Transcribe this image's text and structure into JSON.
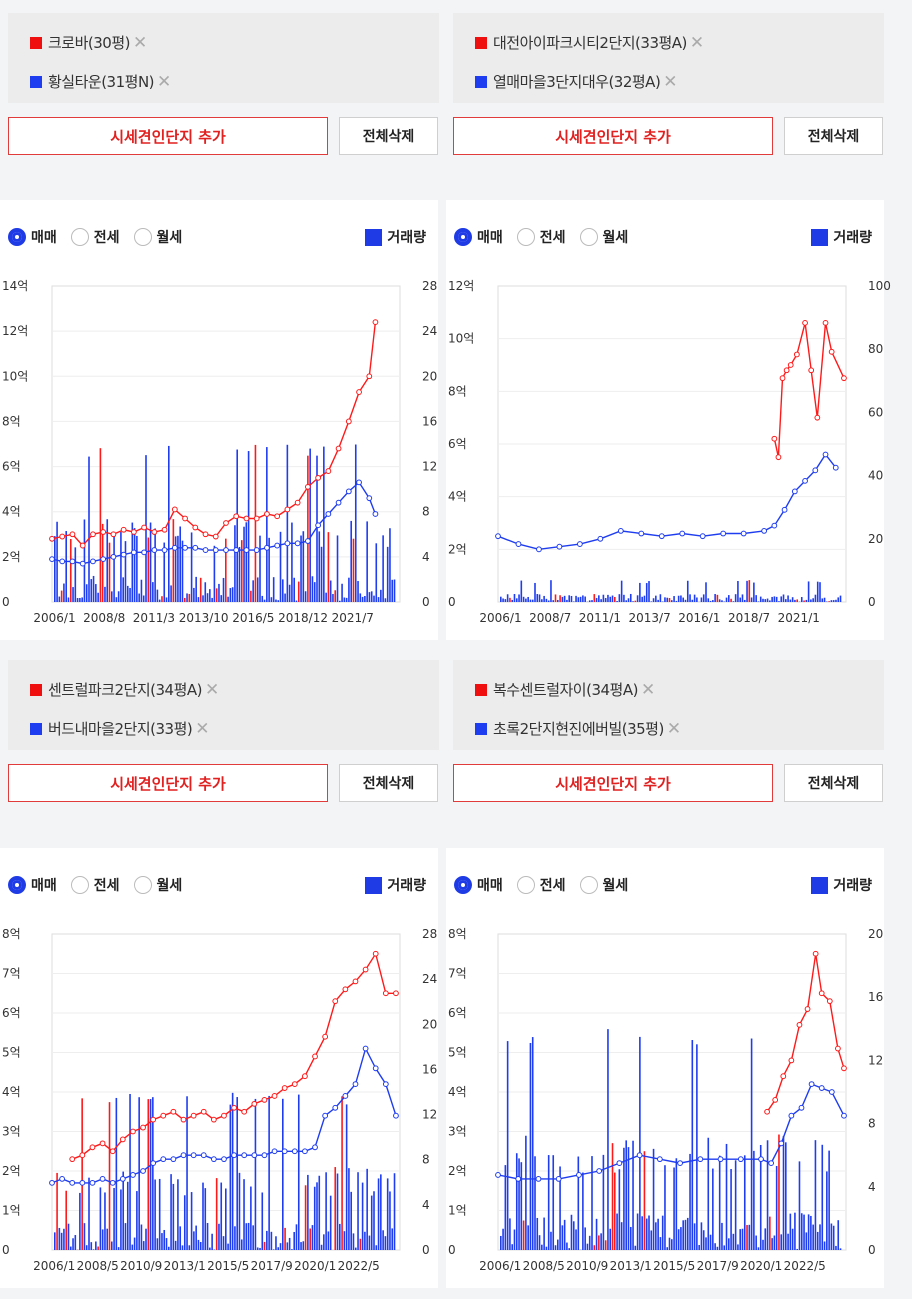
{
  "ui": {
    "add_label": "시세견인단지 추가",
    "delete_label": "전체삭제",
    "close_glyph": "✕",
    "options": [
      "매매",
      "전세",
      "월세"
    ],
    "volume_label": "거래량",
    "colors": {
      "primary": "#ff1a1a",
      "secondary": "#1f3df0"
    }
  },
  "panels": [
    {
      "legend": [
        {
          "label": "크로바(30평)",
          "color": "#f00f0f"
        },
        {
          "label": "황실타운(31평N)",
          "color": "#1f3df0"
        }
      ],
      "chart": {
        "y_left_ticks": [
          "14억",
          "12억",
          "10억",
          "8억",
          "6억",
          "4억",
          "2억",
          "0"
        ],
        "y_right_ticks": [
          "28",
          "24",
          "20",
          "16",
          "12",
          "8",
          "4",
          "0"
        ],
        "x_ticks": [
          "2006/1",
          "2008/8",
          "2011/3",
          "2013/10",
          "2016/5",
          "2018/12",
          "2021/7"
        ]
      }
    },
    {
      "legend": [
        {
          "label": "대전아이파크시티2단지(33평A)",
          "color": "#f00f0f"
        },
        {
          "label": "열매마을3단지대우(32평A)",
          "color": "#1f3df0"
        }
      ],
      "chart": {
        "y_left_ticks": [
          "12억",
          "10억",
          "8억",
          "6억",
          "4억",
          "2억",
          "0"
        ],
        "y_right_ticks": [
          "100",
          "80",
          "60",
          "40",
          "20",
          "0"
        ],
        "x_ticks": [
          "2006/1",
          "2008/7",
          "2011/1",
          "2013/7",
          "2016/1",
          "2018/7",
          "2021/1"
        ]
      }
    },
    {
      "legend": [
        {
          "label": "센트럴파크2단지(34평A)",
          "color": "#f00f0f"
        },
        {
          "label": "버드내마을2단지(33평)",
          "color": "#1f3df0"
        }
      ],
      "chart": {
        "y_left_ticks": [
          "8억",
          "7억",
          "6억",
          "5억",
          "4억",
          "3억",
          "2억",
          "1억",
          "0"
        ],
        "y_right_ticks": [
          "28",
          "24",
          "20",
          "16",
          "12",
          "8",
          "4",
          "0"
        ],
        "x_ticks": [
          "2006/1",
          "2008/5",
          "2010/9",
          "2013/1",
          "2015/5",
          "2017/9",
          "2020/1",
          "2022/5"
        ]
      }
    },
    {
      "legend": [
        {
          "label": "복수센트럴자이(34평A)",
          "color": "#f00f0f"
        },
        {
          "label": "초록2단지현진에버빌(35평)",
          "color": "#1f3df0"
        }
      ],
      "chart": {
        "y_left_ticks": [
          "8억",
          "7억",
          "6억",
          "5억",
          "4억",
          "3억",
          "2억",
          "1억",
          "0"
        ],
        "y_right_ticks": [
          "20",
          "16",
          "12",
          "8",
          "4",
          "0"
        ],
        "x_ticks": [
          "2006/1",
          "2008/5",
          "2010/9",
          "2013/1",
          "2015/5",
          "2017/9",
          "2020/1",
          "2022/5"
        ]
      }
    }
  ],
  "chart_data": [
    {
      "type": "line",
      "title": "",
      "ylim": [
        0,
        14
      ],
      "y2lim": [
        0,
        28
      ],
      "x_range": [
        2006.0,
        2023.0
      ],
      "series": [
        {
          "name": "크로바(30평)",
          "color": "#ff1a1a",
          "x": [
            2006.0,
            2006.5,
            2007.0,
            2007.5,
            2008.0,
            2008.5,
            2009.0,
            2009.5,
            2010.0,
            2010.5,
            2011.0,
            2011.5,
            2012.0,
            2012.5,
            2013.0,
            2013.5,
            2014.0,
            2014.5,
            2015.0,
            2015.5,
            2016.0,
            2016.5,
            2017.0,
            2017.5,
            2018.0,
            2018.5,
            2019.0,
            2019.5,
            2020.0,
            2020.5,
            2021.0,
            2021.5,
            2021.8
          ],
          "y": [
            2.8,
            2.9,
            3.0,
            2.5,
            3.0,
            3.1,
            3.0,
            3.2,
            3.1,
            3.3,
            3.1,
            3.2,
            4.1,
            3.7,
            3.3,
            3.0,
            2.9,
            3.5,
            3.8,
            3.7,
            3.7,
            3.9,
            3.8,
            4.1,
            4.4,
            5.1,
            5.5,
            5.8,
            6.8,
            8.0,
            9.3,
            10.0,
            12.4
          ]
        },
        {
          "name": "황실타운(31평N)",
          "color": "#1f3df0",
          "x": [
            2006.0,
            2006.5,
            2007.0,
            2007.5,
            2008.0,
            2008.5,
            2009.0,
            2009.5,
            2010.0,
            2010.5,
            2011.0,
            2011.5,
            2012.0,
            2012.5,
            2013.0,
            2013.5,
            2014.0,
            2014.5,
            2015.0,
            2015.5,
            2016.0,
            2016.5,
            2017.0,
            2017.5,
            2018.0,
            2018.5,
            2019.0,
            2019.5,
            2020.0,
            2020.5,
            2021.0,
            2021.5,
            2021.8
          ],
          "y": [
            1.9,
            1.8,
            1.8,
            1.7,
            1.8,
            1.9,
            2.0,
            2.1,
            2.2,
            2.2,
            2.3,
            2.3,
            2.4,
            2.4,
            2.4,
            2.3,
            2.3,
            2.3,
            2.3,
            2.3,
            2.3,
            2.4,
            2.5,
            2.6,
            2.6,
            2.7,
            3.4,
            3.9,
            4.4,
            4.9,
            5.3,
            4.6,
            3.9
          ]
        }
      ]
    },
    {
      "type": "line",
      "title": "",
      "ylim": [
        0,
        12
      ],
      "y2lim": [
        0,
        100
      ],
      "x_range": [
        2006.0,
        2023.0
      ],
      "series": [
        {
          "name": "대전아이파크시티2단지(33평A)",
          "color": "#ff1a1a",
          "x": [
            2019.5,
            2019.7,
            2019.9,
            2020.1,
            2020.3,
            2020.6,
            2021.0,
            2021.3,
            2021.6,
            2022.0,
            2022.3,
            2022.9
          ],
          "y": [
            6.2,
            5.5,
            8.5,
            8.8,
            9.0,
            9.4,
            10.6,
            8.8,
            7.0,
            10.6,
            9.5,
            8.5
          ]
        },
        {
          "name": "열매마을3단지대우(32평A)",
          "color": "#1f3df0",
          "x": [
            2006.0,
            2007.0,
            2008.0,
            2009.0,
            2010.0,
            2011.0,
            2012.0,
            2013.0,
            2014.0,
            2015.0,
            2016.0,
            2017.0,
            2018.0,
            2019.0,
            2019.5,
            2020.0,
            2020.5,
            2021.0,
            2021.5,
            2022.0,
            2022.5
          ],
          "y": [
            2.5,
            2.2,
            2.0,
            2.1,
            2.2,
            2.4,
            2.7,
            2.6,
            2.5,
            2.6,
            2.5,
            2.6,
            2.6,
            2.7,
            2.9,
            3.5,
            4.2,
            4.6,
            5.0,
            5.6,
            5.1
          ]
        }
      ]
    },
    {
      "type": "line",
      "title": "",
      "ylim": [
        0,
        8
      ],
      "y2lim": [
        0,
        28
      ],
      "x_range": [
        2006.0,
        2023.2
      ],
      "series": [
        {
          "name": "센트럴파크2단지(34평A)",
          "color": "#ff1a1a",
          "x": [
            2007.0,
            2007.5,
            2008.0,
            2008.5,
            2009.0,
            2009.5,
            2010.0,
            2010.5,
            2011.0,
            2011.5,
            2012.0,
            2012.5,
            2013.0,
            2013.5,
            2014.0,
            2014.5,
            2015.0,
            2015.5,
            2016.0,
            2016.5,
            2017.0,
            2017.5,
            2018.0,
            2018.5,
            2019.0,
            2019.5,
            2020.0,
            2020.5,
            2021.0,
            2021.5,
            2022.0,
            2022.5,
            2023.0
          ],
          "y": [
            2.3,
            2.4,
            2.6,
            2.7,
            2.5,
            2.8,
            3.0,
            3.1,
            3.3,
            3.4,
            3.5,
            3.3,
            3.4,
            3.5,
            3.3,
            3.4,
            3.6,
            3.5,
            3.7,
            3.8,
            3.9,
            4.1,
            4.2,
            4.4,
            4.9,
            5.4,
            6.3,
            6.6,
            6.8,
            7.1,
            7.5,
            6.5,
            6.5
          ]
        },
        {
          "name": "버드내마을2단지(33평)",
          "color": "#1f3df0",
          "x": [
            2006.0,
            2006.5,
            2007.0,
            2007.5,
            2008.0,
            2008.5,
            2009.0,
            2009.5,
            2010.0,
            2010.5,
            2011.0,
            2011.5,
            2012.0,
            2012.5,
            2013.0,
            2013.5,
            2014.0,
            2014.5,
            2015.0,
            2015.5,
            2016.0,
            2016.5,
            2017.0,
            2017.5,
            2018.0,
            2018.5,
            2019.0,
            2019.5,
            2020.0,
            2020.5,
            2021.0,
            2021.5,
            2022.0,
            2022.5,
            2023.0
          ],
          "y": [
            1.7,
            1.8,
            1.7,
            1.7,
            1.7,
            1.8,
            1.7,
            1.8,
            1.9,
            2.0,
            2.2,
            2.3,
            2.3,
            2.4,
            2.4,
            2.4,
            2.3,
            2.3,
            2.4,
            2.4,
            2.4,
            2.4,
            2.5,
            2.5,
            2.5,
            2.5,
            2.6,
            3.4,
            3.6,
            3.9,
            4.2,
            5.1,
            4.6,
            4.2,
            3.4
          ]
        }
      ]
    },
    {
      "type": "line",
      "title": "",
      "ylim": [
        0,
        8
      ],
      "y2lim": [
        0,
        20
      ],
      "x_range": [
        2006.0,
        2023.2
      ],
      "series": [
        {
          "name": "복수센트럴자이(34평A)",
          "color": "#ff1a1a",
          "x": [
            2019.3,
            2019.7,
            2020.1,
            2020.5,
            2020.9,
            2021.3,
            2021.7,
            2022.0,
            2022.4,
            2022.8,
            2023.1
          ],
          "y": [
            3.5,
            3.8,
            4.4,
            4.8,
            5.7,
            6.1,
            7.5,
            6.5,
            6.3,
            5.1,
            4.6
          ]
        },
        {
          "name": "초록2단지현진에버빌(35평)",
          "color": "#1f3df0",
          "x": [
            2006.0,
            2007.0,
            2008.0,
            2009.0,
            2010.0,
            2011.0,
            2012.0,
            2013.0,
            2014.0,
            2015.0,
            2016.0,
            2017.0,
            2018.0,
            2019.0,
            2019.5,
            2020.0,
            2020.5,
            2021.0,
            2021.5,
            2022.0,
            2022.5,
            2023.1
          ],
          "y": [
            1.9,
            1.8,
            1.8,
            1.8,
            1.9,
            2.0,
            2.2,
            2.4,
            2.3,
            2.2,
            2.3,
            2.3,
            2.3,
            2.3,
            2.2,
            2.7,
            3.4,
            3.6,
            4.2,
            4.1,
            4.0,
            3.4
          ]
        }
      ]
    }
  ]
}
